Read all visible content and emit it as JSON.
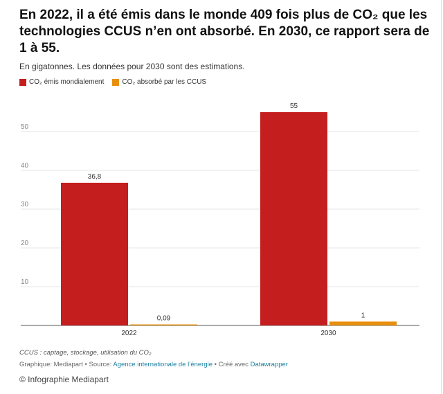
{
  "header": {
    "title": "En 2022, il a été émis dans le monde 409 fois plus de CO₂ que les technologies CCUS n’en ont absorbé. En 2030, ce rapport sera de 1 à 55.",
    "subtitle": "En gigatonnes. Les données pour 2030 sont des estimations."
  },
  "colors": {
    "emitted": "#c41e1e",
    "absorbed": "#e8900e"
  },
  "chart_data": {
    "type": "bar",
    "categories": [
      "2022",
      "2030"
    ],
    "series": [
      {
        "name": "CO₂ émis mondialement",
        "values": [
          36.8,
          55
        ],
        "labels": [
          "36,8",
          "55"
        ]
      },
      {
        "name": "CO₂ absorbé par les CCUS",
        "values": [
          0.09,
          1
        ],
        "labels": [
          "0,09",
          "1"
        ]
      }
    ],
    "y_ticks": [
      10,
      20,
      30,
      40,
      50
    ],
    "ylim": [
      0,
      60
    ],
    "grid": true,
    "legend": "top-left"
  },
  "footer": {
    "note": "CCUS : captage, stockage, utilisation du CO₂",
    "credit_prefix": "Graphique: Mediapart • Source: ",
    "source_link": "Agence internationale de l’énergie",
    "credit_mid": " • Créé avec ",
    "tool_link": "Datawrapper",
    "copyright": "© Infographie Mediapart"
  }
}
